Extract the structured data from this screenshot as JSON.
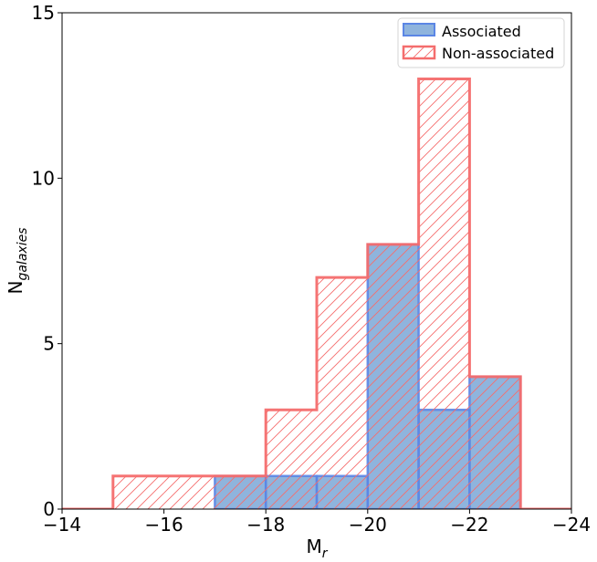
{
  "chart_data": {
    "type": "bar",
    "subtype": "step-histogram",
    "title": "",
    "xlabel": {
      "main": "M",
      "sub": "r"
    },
    "ylabel": {
      "main": "N",
      "sub": "galaxies"
    },
    "xlim": [
      -14,
      -24
    ],
    "ylim": [
      0,
      15
    ],
    "x_axis_inverted": true,
    "xticks": [
      -14,
      -16,
      -18,
      -20,
      -22,
      -24
    ],
    "xtick_labels": [
      "−14",
      "−16",
      "−18",
      "−20",
      "−22",
      "−24"
    ],
    "yticks": [
      0,
      5,
      10,
      15
    ],
    "ytick_labels": [
      "0",
      "5",
      "10",
      "15"
    ],
    "bin_edges": [
      -14,
      -15,
      -16,
      -17,
      -18,
      -19,
      -20,
      -21,
      -22,
      -23,
      -24
    ],
    "series": [
      {
        "name": "Associated",
        "style": "filled",
        "color": "#6a9bd1",
        "edge_color": "#5b86e5",
        "values": [
          0,
          0,
          0,
          1,
          1,
          1,
          8,
          3,
          4,
          0
        ]
      },
      {
        "name": "Non-associated",
        "style": "hatched-outline",
        "color": "#f46d6d",
        "values": [
          0,
          1,
          1,
          1,
          3,
          7,
          8,
          13,
          4,
          0
        ]
      }
    ],
    "legend_position": "top-right",
    "grid": false
  }
}
